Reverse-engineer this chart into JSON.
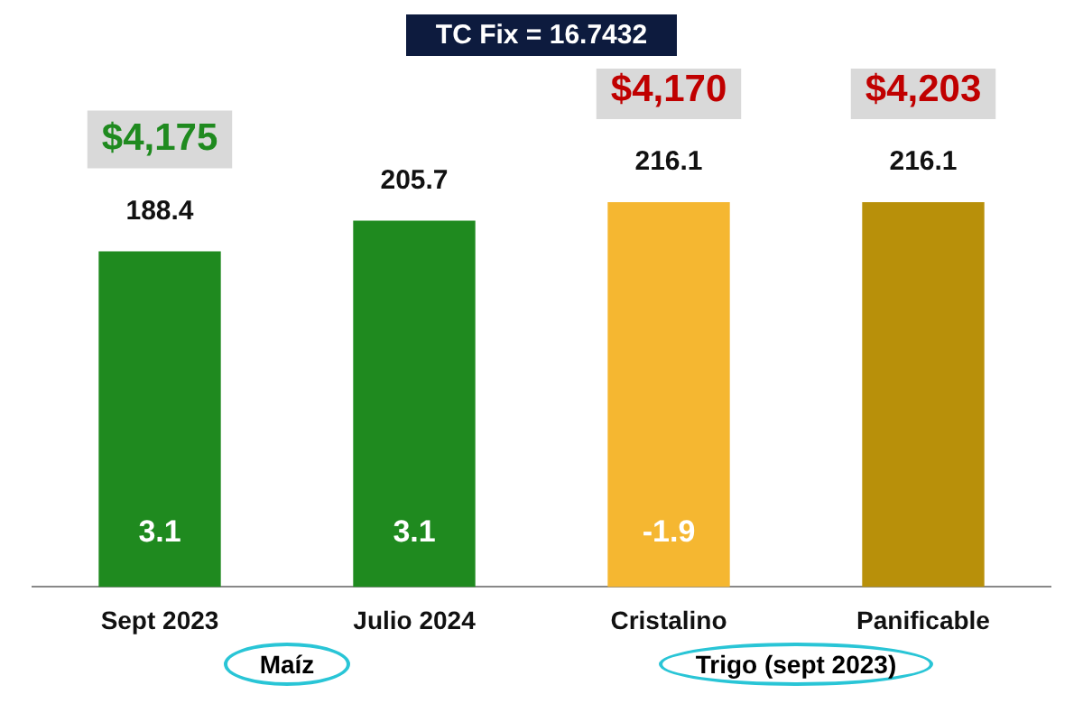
{
  "chart_data": {
    "type": "bar",
    "title": "TC Fix = 16.7432",
    "categories": [
      "Sept 2023",
      "Julio 2024",
      "Cristalino",
      "Panificable"
    ],
    "values": [
      188.4,
      205.7,
      216.1,
      216.1
    ],
    "colors": [
      "#1f8a1f",
      "#1f8a1f",
      "#f5b731",
      "#b8900a"
    ],
    "data_labels": true,
    "grid": false,
    "legend": false,
    "annotations": [
      "$4,175",
      "$4,170",
      "$4,203",
      "3.1",
      "3.1",
      "-1.9",
      "Maíz",
      "Trigo (sept 2023)"
    ]
  }
}
